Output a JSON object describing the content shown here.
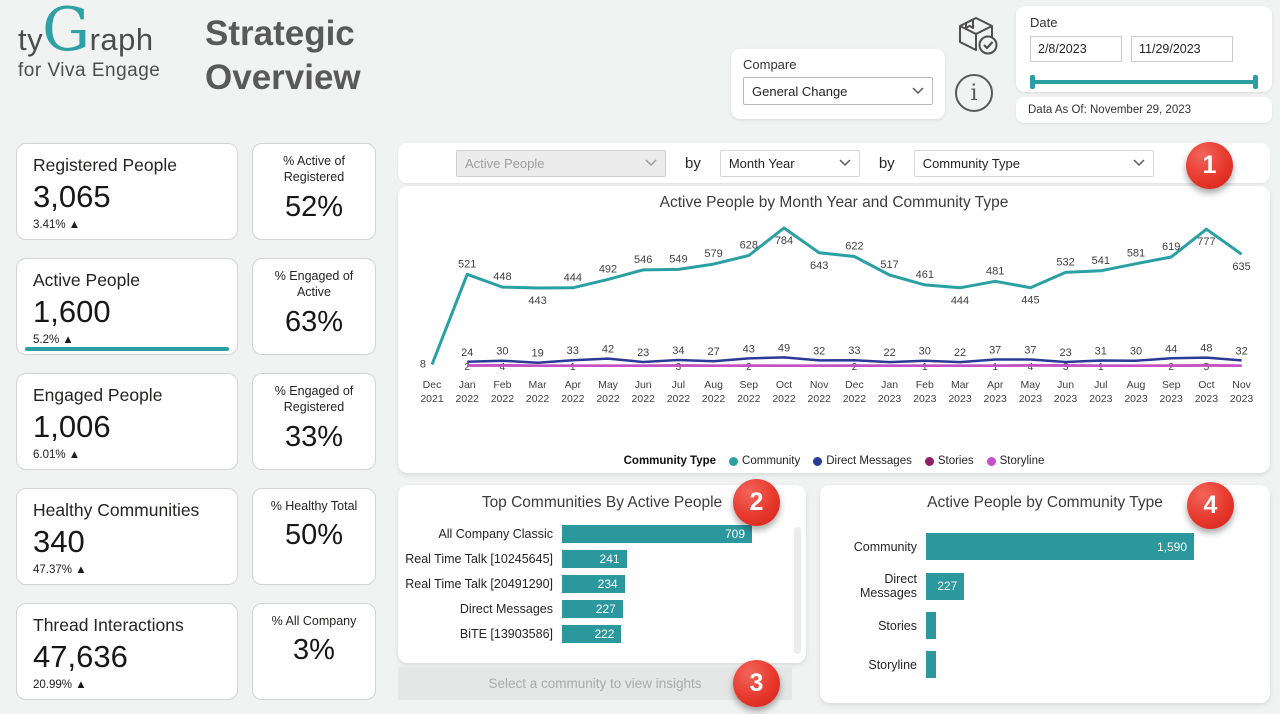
{
  "header": {
    "logo_prefix": "ty",
    "logo_g": "G",
    "logo_suffix": "raph",
    "logo_sub": "for Viva Engage",
    "title_line1": "Strategic",
    "title_line2": "Overview",
    "compare_label": "Compare",
    "compare_value": "General Change",
    "date_label": "Date",
    "date_start": "2/8/2023",
    "date_end": "11/29/2023",
    "data_as_of": "Data As Of: November 29, 2023"
  },
  "kpis": [
    {
      "label": "Registered People",
      "value": "3,065",
      "change": "3.41% ▲",
      "selected": false,
      "pct_label": "% Active of Registered",
      "pct_value": "52%"
    },
    {
      "label": "Active People",
      "value": "1,600",
      "change": "5.2% ▲",
      "selected": true,
      "pct_label": "% Engaged of Active",
      "pct_value": "63%"
    },
    {
      "label": "Engaged People",
      "value": "1,006",
      "change": "6.01% ▲",
      "selected": false,
      "pct_label": "% Engaged of Registered",
      "pct_value": "33%"
    },
    {
      "label": "Healthy Communities",
      "value": "340",
      "change": "47.37% ▲",
      "selected": false,
      "pct_label": "% Healthy Total",
      "pct_value": "50%"
    },
    {
      "label": "Thread Interactions",
      "value": "47,636",
      "change": "20.99% ▲",
      "selected": false,
      "pct_label": "% All Company",
      "pct_value": "3%"
    }
  ],
  "filter_bar": {
    "measure": "Active People",
    "by1": "by",
    "dim1": "Month Year",
    "by2": "by",
    "dim2": "Community Type"
  },
  "annotations": {
    "step1": "1",
    "step2": "2",
    "step3": "3",
    "step4": "4"
  },
  "buttons": {
    "select_community": "Select a community to view insights"
  },
  "colors": {
    "accent_teal": "#2aa0a4",
    "bar_teal": "#2b989e",
    "dm_blue": "#2b3a97",
    "stories": "#8e2162",
    "storyline": "#c750c9",
    "badge_red": "#e7382c"
  },
  "chart_data": [
    {
      "type": "line",
      "title": "Active People by Month Year and Community Type",
      "legend_title": "Community Type",
      "legend_position": "bottom",
      "grid": false,
      "ylim": [
        0,
        800
      ],
      "x": [
        "Dec 2021",
        "Jan 2022",
        "Feb 2022",
        "Mar 2022",
        "Apr 2022",
        "May 2022",
        "Jun 2022",
        "Jul 2022",
        "Aug 2022",
        "Sep 2022",
        "Oct 2022",
        "Nov 2022",
        "Dec 2022",
        "Jan 2023",
        "Feb 2023",
        "Mar 2023",
        "Apr 2023",
        "May 2023",
        "Jun 2023",
        "Jul 2023",
        "Aug 2023",
        "Sep 2023",
        "Oct 2023",
        "Nov 2023"
      ],
      "series": [
        {
          "name": "Community",
          "color": "#2aa0a4",
          "values": [
            8,
            521,
            448,
            443,
            444,
            492,
            546,
            549,
            579,
            628,
            784,
            643,
            622,
            517,
            461,
            444,
            481,
            445,
            532,
            541,
            581,
            619,
            777,
            635
          ]
        },
        {
          "name": "Direct Messages",
          "color": "#2b3a97",
          "values": [
            null,
            24,
            30,
            19,
            33,
            42,
            23,
            34,
            27,
            43,
            49,
            32,
            33,
            22,
            30,
            22,
            37,
            37,
            23,
            31,
            30,
            44,
            48,
            32
          ]
        },
        {
          "name": "Stories",
          "color": "#8e2162",
          "values": [
            null,
            3,
            3,
            2,
            2,
            2,
            2,
            3,
            2,
            2,
            2,
            2,
            2,
            2,
            2,
            2,
            2,
            3,
            3,
            2,
            2,
            2,
            3,
            2
          ]
        },
        {
          "name": "Storyline",
          "color": "#c750c9",
          "values": [
            null,
            2,
            4,
            1,
            1,
            1,
            1,
            3,
            1,
            2,
            1,
            1,
            2,
            1,
            1,
            1,
            1,
            4,
            3,
            1,
            1,
            2,
            5,
            1
          ]
        }
      ],
      "minor_point_labels": [
        {
          "i": 1,
          "v": "2"
        },
        {
          "i": 2,
          "v": "4"
        },
        {
          "i": 4,
          "v": "1"
        },
        {
          "i": 7,
          "v": "3"
        },
        {
          "i": 9,
          "v": "2"
        },
        {
          "i": 12,
          "v": "2"
        },
        {
          "i": 14,
          "v": "1"
        },
        {
          "i": 16,
          "v": "1"
        },
        {
          "i": 17,
          "v": "4"
        },
        {
          "i": 18,
          "v": "3"
        },
        {
          "i": 19,
          "v": "1"
        },
        {
          "i": 21,
          "v": "2"
        },
        {
          "i": 22,
          "v": "5"
        }
      ]
    },
    {
      "type": "bar",
      "orientation": "horizontal",
      "title": "Top Communities By Active People",
      "categories": [
        "All Company Classic",
        "Real Time Talk [10245645]",
        "Real Time Talk [20491290]",
        "Direct Messages",
        "BiTE [13903586]"
      ],
      "values": [
        709,
        241,
        234,
        227,
        222
      ],
      "value_labels": [
        "709",
        "241",
        "234",
        "227",
        "222"
      ],
      "xlim": [
        0,
        760
      ]
    },
    {
      "type": "bar",
      "orientation": "horizontal",
      "title": "Active People by Community Type",
      "categories": [
        "Community",
        "Direct Messages",
        "Stories",
        "Storyline"
      ],
      "values": [
        1590,
        227,
        60,
        55
      ],
      "value_labels": [
        "1,590",
        "227",
        "",
        ""
      ],
      "xlim": [
        0,
        1700
      ]
    }
  ]
}
